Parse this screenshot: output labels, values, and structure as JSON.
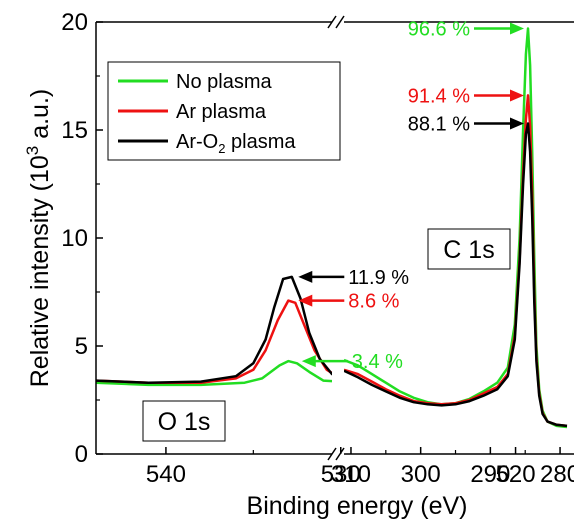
{
  "chart_data": {
    "type": "line",
    "ylabel_main": "Relative intensity (10",
    "ylabel_sup": "3",
    "ylabel_tail": " a.u.)",
    "xlabel": "Binding energy (eV)",
    "ylim": [
      0,
      20
    ],
    "y_ticks": [
      "0",
      "5",
      "10",
      "15",
      "20"
    ],
    "x_reversed": true,
    "broken_axis": true,
    "panels": [
      {
        "name": "O 1s",
        "xlim": [
          544,
          530.5
        ],
        "x_ticks": [
          "540",
          "530",
          "520"
        ],
        "x_tick_values": [
          540,
          530,
          520
        ]
      },
      {
        "name": "C 1s",
        "xlim": [
          311,
          278
        ],
        "x_ticks": [
          "310",
          "300",
          "290",
          "280"
        ],
        "x_tick_values": [
          310,
          300,
          290,
          280
        ]
      }
    ],
    "legend": {
      "placement": "top-left",
      "entries": [
        {
          "main": "No plasma",
          "sub": "",
          "tail": "",
          "color": "#22dd22"
        },
        {
          "main": "Ar plasma",
          "sub": "",
          "tail": "",
          "color": "#ee1111"
        },
        {
          "main": "Ar-O",
          "sub": "2",
          "tail": " plasma",
          "color": "#000000"
        }
      ]
    },
    "series": [
      {
        "color": "#22dd22",
        "left": [
          [
            544,
            3.3
          ],
          [
            541,
            3.2
          ],
          [
            538,
            3.2
          ],
          [
            535.5,
            3.3
          ],
          [
            534.5,
            3.5
          ],
          [
            533.5,
            4.1
          ],
          [
            533,
            4.3
          ],
          [
            532.5,
            4.2
          ],
          [
            531.8,
            3.8
          ],
          [
            531,
            3.4
          ],
          [
            529,
            3.3
          ],
          [
            526,
            3.3
          ],
          [
            524.5,
            3.5
          ],
          [
            523,
            3.4
          ],
          [
            521,
            3.2
          ],
          [
            518,
            3.1
          ],
          [
            516,
            3.05
          ],
          [
            514,
            3.0
          ],
          [
            512.5,
            3.0
          ]
        ],
        "right": [
          [
            311,
            4.35
          ],
          [
            309,
            4.1
          ],
          [
            307,
            3.7
          ],
          [
            305,
            3.3
          ],
          [
            303,
            2.9
          ],
          [
            301,
            2.6
          ],
          [
            299,
            2.4
          ],
          [
            297,
            2.3
          ],
          [
            295,
            2.35
          ],
          [
            293,
            2.55
          ],
          [
            291,
            2.9
          ],
          [
            289,
            3.3
          ],
          [
            287.5,
            4.0
          ],
          [
            286.5,
            6.0
          ],
          [
            285.8,
            10.0
          ],
          [
            285.3,
            15.0
          ],
          [
            284.9,
            18.5
          ],
          [
            284.6,
            19.7
          ],
          [
            284.3,
            18.0
          ],
          [
            284,
            14.0
          ],
          [
            283.7,
            9.0
          ],
          [
            283.4,
            5.0
          ],
          [
            283,
            3.0
          ],
          [
            282.5,
            2.0
          ],
          [
            281.8,
            1.5
          ],
          [
            280.5,
            1.3
          ],
          [
            279,
            1.25
          ]
        ]
      },
      {
        "color": "#ee1111",
        "left": [
          [
            544,
            3.4
          ],
          [
            541,
            3.3
          ],
          [
            538,
            3.3
          ],
          [
            536,
            3.5
          ],
          [
            535,
            3.9
          ],
          [
            534.3,
            4.8
          ],
          [
            533.6,
            6.2
          ],
          [
            533,
            7.1
          ],
          [
            532.6,
            7.0
          ],
          [
            532.1,
            6.0
          ],
          [
            531.5,
            4.8
          ],
          [
            530.8,
            3.9
          ],
          [
            529.8,
            3.4
          ],
          [
            528,
            3.3
          ],
          [
            526,
            3.3
          ],
          [
            524.5,
            3.5
          ],
          [
            523.5,
            3.4
          ],
          [
            521,
            3.2
          ],
          [
            518,
            3.1
          ],
          [
            516,
            3.05
          ],
          [
            514,
            3.0
          ],
          [
            512.5,
            2.95
          ]
        ],
        "right": [
          [
            311,
            3.9
          ],
          [
            309,
            3.7
          ],
          [
            307,
            3.35
          ],
          [
            305,
            3.0
          ],
          [
            303,
            2.7
          ],
          [
            301,
            2.45
          ],
          [
            299,
            2.35
          ],
          [
            297,
            2.3
          ],
          [
            295,
            2.35
          ],
          [
            293,
            2.5
          ],
          [
            291,
            2.8
          ],
          [
            289,
            3.1
          ],
          [
            287.5,
            3.7
          ],
          [
            286.5,
            5.5
          ],
          [
            285.8,
            9.0
          ],
          [
            285.3,
            13.0
          ],
          [
            284.9,
            15.5
          ],
          [
            284.6,
            16.6
          ],
          [
            284.3,
            15.2
          ],
          [
            284,
            12.0
          ],
          [
            283.7,
            7.5
          ],
          [
            283.4,
            4.5
          ],
          [
            283,
            2.8
          ],
          [
            282.5,
            1.9
          ],
          [
            281.8,
            1.5
          ],
          [
            280.5,
            1.35
          ],
          [
            279,
            1.3
          ]
        ]
      },
      {
        "color": "#000000",
        "left": [
          [
            544,
            3.4
          ],
          [
            541,
            3.3
          ],
          [
            538,
            3.35
          ],
          [
            536,
            3.6
          ],
          [
            535,
            4.2
          ],
          [
            534.3,
            5.3
          ],
          [
            533.8,
            6.8
          ],
          [
            533.3,
            8.1
          ],
          [
            532.8,
            8.2
          ],
          [
            532.3,
            7.2
          ],
          [
            531.8,
            5.6
          ],
          [
            531.2,
            4.4
          ],
          [
            530.5,
            3.7
          ],
          [
            529.5,
            3.4
          ],
          [
            528,
            3.3
          ],
          [
            526.5,
            3.3
          ],
          [
            524.5,
            3.6
          ],
          [
            523.5,
            3.5
          ],
          [
            521.5,
            3.2
          ],
          [
            519,
            3.05
          ],
          [
            516,
            3.0
          ],
          [
            514,
            3.0
          ],
          [
            512.5,
            2.95
          ]
        ],
        "right": [
          [
            311,
            3.85
          ],
          [
            309,
            3.55
          ],
          [
            307,
            3.2
          ],
          [
            305,
            2.9
          ],
          [
            303,
            2.6
          ],
          [
            301,
            2.4
          ],
          [
            299,
            2.3
          ],
          [
            297,
            2.25
          ],
          [
            295,
            2.3
          ],
          [
            293,
            2.45
          ],
          [
            291,
            2.7
          ],
          [
            289,
            3.0
          ],
          [
            287.5,
            3.6
          ],
          [
            286.5,
            5.3
          ],
          [
            285.8,
            8.8
          ],
          [
            285.3,
            12.5
          ],
          [
            284.9,
            14.8
          ],
          [
            284.6,
            15.3
          ],
          [
            284.3,
            14.0
          ],
          [
            284,
            11.0
          ],
          [
            283.7,
            7.0
          ],
          [
            283.4,
            4.3
          ],
          [
            283,
            2.7
          ],
          [
            282.5,
            1.85
          ],
          [
            281.8,
            1.5
          ],
          [
            280.5,
            1.35
          ],
          [
            279,
            1.3
          ]
        ]
      }
    ],
    "annotations": [
      {
        "panel": 1,
        "text": "96.6 %",
        "color": "#22dd22",
        "x": 284.6,
        "y": 19.7,
        "arrow_color": "#22dd22"
      },
      {
        "panel": 1,
        "text": "91.4 %",
        "color": "#ee1111",
        "x": 284.6,
        "y": 16.6,
        "arrow_color": "#ee1111"
      },
      {
        "panel": 1,
        "text": "88.1 %",
        "color": "#000000",
        "x": 284.6,
        "y": 15.3,
        "arrow_color": "#000000"
      },
      {
        "panel": 0,
        "text": "11.9 %",
        "color": "#000000",
        "x": 533.0,
        "y": 8.2,
        "arrow_color": "#000000"
      },
      {
        "panel": 0,
        "text": "8.6 %",
        "color": "#ee1111",
        "x": 533.0,
        "y": 7.1,
        "arrow_color": "#ee1111"
      },
      {
        "panel": 0,
        "text": "3.4 %",
        "color": "#22dd22",
        "x": 532.8,
        "y": 4.3,
        "arrow_color": "#22dd22"
      }
    ],
    "panel_labels": [
      {
        "text": "O 1s",
        "panel": 0
      },
      {
        "text": "C 1s",
        "panel": 1
      }
    ]
  }
}
